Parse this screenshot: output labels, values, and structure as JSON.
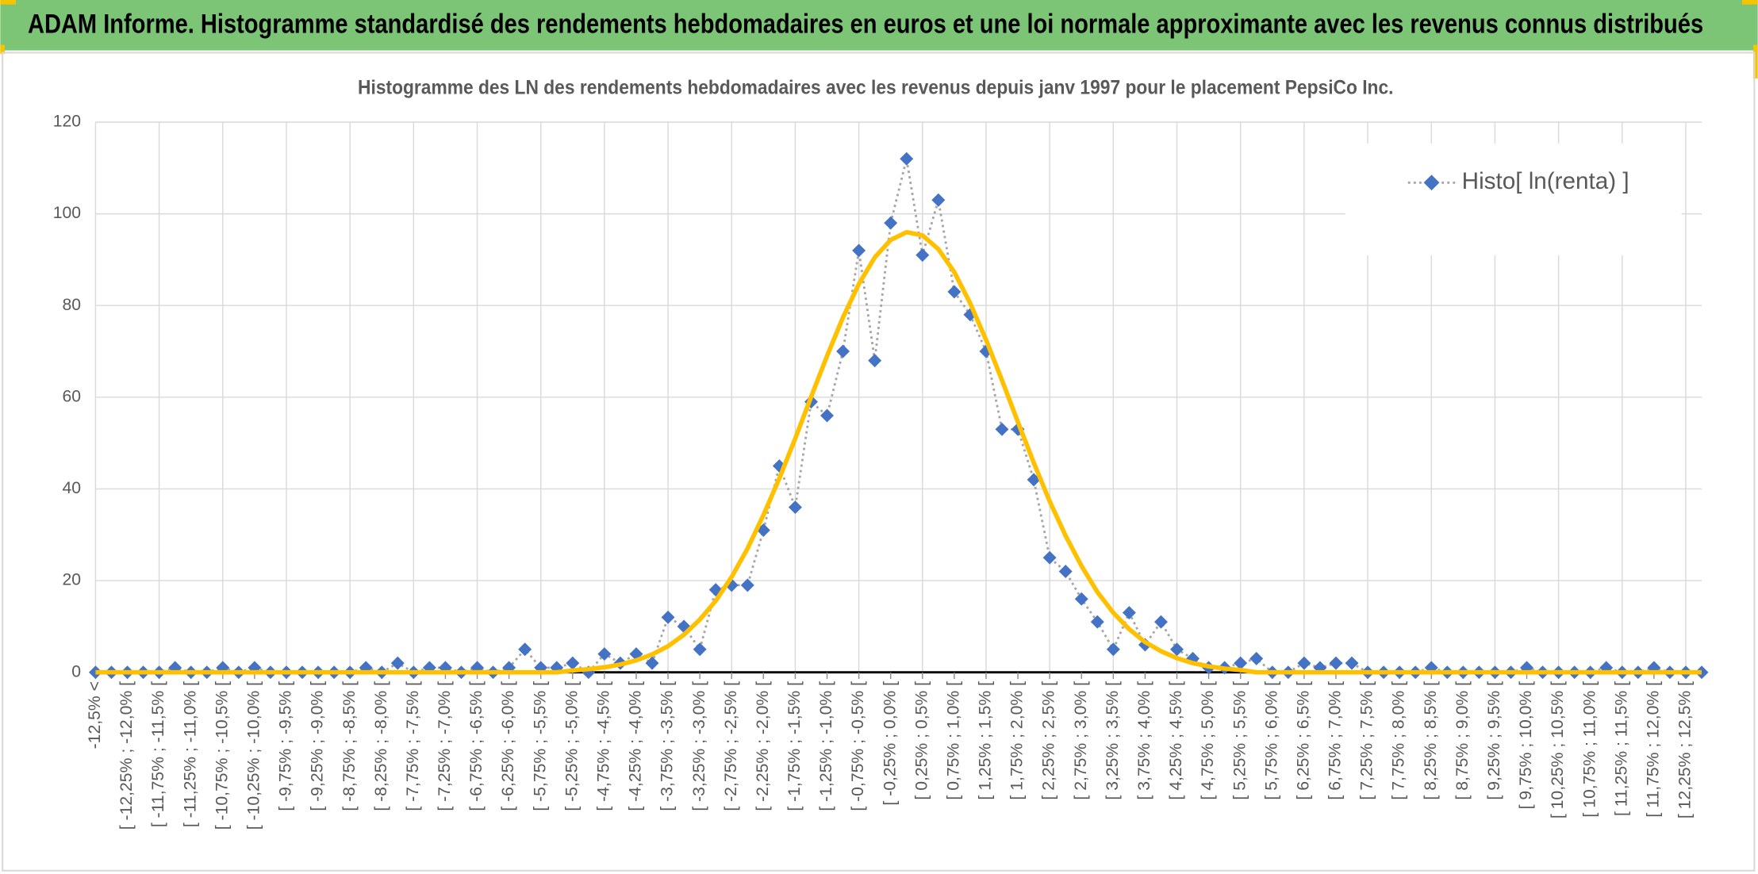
{
  "header": {
    "title": "ADAM Informe. Histogramme standardisé des rendements hebdomadaires en euros et une loi normale approximante avec les revenus connus distribués"
  },
  "chart_data": {
    "type": "line",
    "title": "Histogramme des LN des rendements hebdomadaires avec les revenus depuis janv 1997 pour le placement PepsiCo Inc.",
    "categories": [
      "-12,5% <",
      null,
      "[ -12,25% ; -12,0% [",
      null,
      "[ -11,75% ; -11,5% [",
      null,
      "[ -11,25% ; -11,0% [",
      null,
      "[ -10,75% ; -10,5% [",
      null,
      "[ -10,25% ; -10,0% [",
      null,
      "[ -9,75% ; -9,5% [",
      null,
      "[ -9,25% ; -9,0% [",
      null,
      "[ -8,75% ; -8,5% [",
      null,
      "[ -8,25% ; -8,0% [",
      null,
      "[ -7,75% ; -7,5% [",
      null,
      "[ -7,25% ; -7,0% [",
      null,
      "[ -6,75% ; -6,5% [",
      null,
      "[ -6,25% ; -6,0% [",
      null,
      "[ -5,75% ; -5,5% [",
      null,
      "[ -5,25% ; -5,0% [",
      null,
      "[ -4,75% ; -4,5% [",
      null,
      "[ -4,25% ; -4,0% [",
      null,
      "[ -3,75% ; -3,5% [",
      null,
      "[ -3,25% ; -3,0% [",
      null,
      "[ -2,75% ; -2,5% [",
      null,
      "[ -2,25% ; -2,0% [",
      null,
      "[ -1,75% ; -1,5% [",
      null,
      "[ -1,25% ; -1,0% [",
      null,
      "[ -0,75% ; -0,5% [",
      null,
      "[ -0,25% ; 0,0% [",
      null,
      "[ 0,25% ; 0,5% [",
      null,
      "[ 0,75% ; 1,0% [",
      null,
      "[ 1,25% ; 1,5% [",
      null,
      "[ 1,75% ; 2,0% [",
      null,
      "[ 2,25% ; 2,5% [",
      null,
      "[ 2,75% ; 3,0% [",
      null,
      "[ 3,25% ; 3,5% [",
      null,
      "[ 3,75% ; 4,0% [",
      null,
      "[ 4,25% ; 4,5% [",
      null,
      "[ 4,75% ; 5,0% [",
      null,
      "[ 5,25% ; 5,5% [",
      null,
      "[ 5,75% ; 6,0% [",
      null,
      "[ 6,25% ; 6,5% [",
      null,
      "[ 6,75% ; 7,0% [",
      null,
      "[ 7,25% ; 7,5% [",
      null,
      "[ 7,75% ; 8,0% [",
      null,
      "[ 8,25% ; 8,5% [",
      null,
      "[ 8,75% ; 9,0% [",
      null,
      "[ 9,25% ; 9,5% [",
      null,
      "[ 9,75% ; 10,0% [",
      null,
      "[ 10,25% ; 10,5% [",
      null,
      "[ 10,75% ; 11,0% [",
      null,
      "[ 11,25% ; 11,5% [",
      null,
      "[ 11,75% ; 12,0% [",
      null,
      "[ 12,25% ; 12,5% [",
      null
    ],
    "series": [
      {
        "name": "Histo[ ln(renta) ]",
        "color": "#4472c4",
        "line_color": "#a5a5a5",
        "marker": "diamond",
        "values": [
          0,
          0,
          0,
          0,
          0,
          1,
          0,
          0,
          1,
          0,
          1,
          0,
          0,
          0,
          0,
          0,
          0,
          1,
          0,
          2,
          0,
          1,
          1,
          0,
          1,
          0,
          1,
          5,
          1,
          1,
          2,
          0,
          4,
          2,
          4,
          2,
          12,
          10,
          5,
          18,
          19,
          19,
          31,
          45,
          36,
          59,
          56,
          70,
          92,
          68,
          98,
          112,
          91,
          103,
          83,
          78,
          70,
          53,
          53,
          42,
          25,
          22,
          16,
          11,
          5,
          13,
          6,
          11,
          5,
          3,
          1,
          1,
          2,
          3,
          0,
          0,
          2,
          1,
          2,
          2,
          0,
          0,
          0,
          0,
          1,
          0,
          0,
          0,
          0,
          0,
          1,
          0,
          0,
          0,
          0,
          1,
          0,
          0,
          1,
          0,
          0,
          0
        ]
      },
      {
        "color": "#ffc000",
        "values": [
          0,
          0,
          0,
          0,
          0,
          0,
          0,
          0,
          0,
          0,
          0,
          0,
          0,
          0,
          0,
          0,
          0,
          0,
          0,
          0,
          0,
          0,
          0,
          0,
          0,
          0,
          0,
          0,
          0,
          0,
          0.4,
          0.7,
          1.1,
          1.7,
          2.6,
          3.9,
          5.7,
          8.2,
          11.5,
          15.6,
          20.8,
          27.0,
          34.3,
          42.3,
          51.0,
          60.1,
          69.0,
          77.4,
          84.7,
          90.5,
          94.3,
          96.0,
          95.3,
          92.3,
          87.3,
          80.5,
          72.5,
          63.7,
          54.6,
          45.7,
          37.3,
          29.8,
          23.2,
          17.5,
          13.0,
          9.4,
          6.6,
          4.6,
          3.1,
          2.0,
          1.3,
          0.8,
          0.5,
          0,
          0,
          0,
          0,
          0,
          0,
          0,
          0,
          0,
          0,
          0,
          0,
          0,
          0,
          0,
          0,
          0,
          0,
          0,
          0,
          0,
          0,
          0,
          0,
          0,
          0,
          0,
          0,
          0
        ]
      }
    ],
    "ylim": [
      0,
      120
    ],
    "yticks": [
      0,
      20,
      40,
      60,
      80,
      100,
      120
    ],
    "grid": true,
    "legend": "upper right"
  }
}
